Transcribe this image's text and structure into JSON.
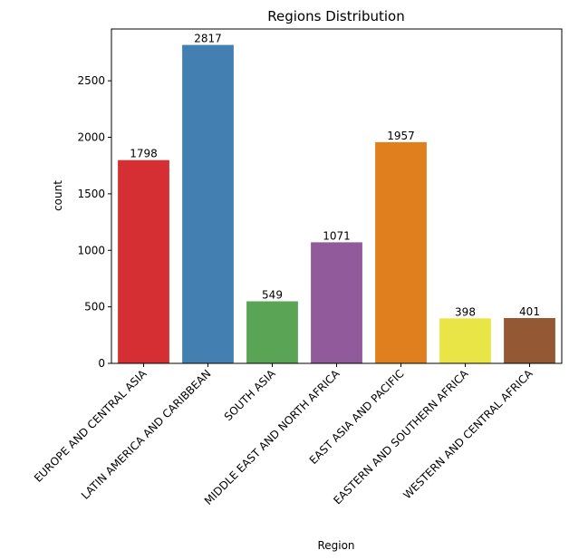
{
  "chart_data": {
    "type": "bar",
    "title": "Regions Distribution",
    "xlabel": "Region",
    "ylabel": "count",
    "categories": [
      "EUROPE AND CENTRAL ASIA",
      "LATIN AMERICA AND CARIBBEAN",
      "SOUTH ASIA",
      "MIDDLE EAST AND NORTH AFRICA",
      "EAST ASIA AND PACIFIC",
      "EASTERN AND SOUTHERN AFRICA",
      "WESTERN AND CENTRAL AFRICA"
    ],
    "values": [
      1798,
      2817,
      549,
      1071,
      1957,
      398,
      401
    ],
    "data_labels": [
      "1798",
      "2817",
      "549",
      "1071",
      "1957",
      "398",
      "401"
    ],
    "colors": [
      "#d62f33",
      "#437fb0",
      "#5aa555",
      "#905a9b",
      "#e07f1e",
      "#e9e547",
      "#955834"
    ],
    "yticks": [
      0,
      500,
      1000,
      1500,
      2000,
      2500
    ],
    "ylim": [
      0,
      2958
    ],
    "grid": false,
    "legend": "none"
  }
}
